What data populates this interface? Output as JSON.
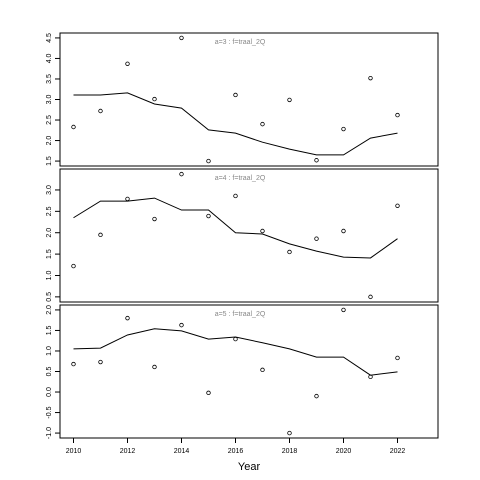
{
  "chart_data": [
    {
      "type": "line",
      "title": "a=3  :  f=traal_2Q",
      "x": [
        2010,
        2011,
        2012,
        2013,
        2014,
        2015,
        2016,
        2017,
        2018,
        2019,
        2020,
        2021,
        2022
      ],
      "series": [
        {
          "color": "#000000",
          "mode": "points",
          "values": [
            2.33,
            2.72,
            3.87,
            3.01,
            4.5,
            1.5,
            3.11,
            2.4,
            2.99,
            1.52,
            2.28,
            3.52,
            2.62
          ]
        },
        {
          "color": "#000000",
          "mode": "line",
          "values": [
            3.11,
            3.11,
            3.16,
            2.89,
            2.79,
            2.26,
            2.18,
            1.96,
            1.79,
            1.65,
            1.65,
            2.06,
            2.18
          ]
        }
      ],
      "xlim": [
        2009.5,
        2023.5
      ],
      "ylim": [
        1.38,
        4.62
      ],
      "yticks": [
        1.5,
        {
          "value": 2,
          "label": "2.0"
        },
        2.5,
        {
          "value": 3,
          "label": "3.0"
        },
        3.5,
        {
          "value": 4,
          "label": "4.0"
        },
        4.5
      ]
    },
    {
      "type": "line",
      "title": "a=4  :  f=traal_2Q",
      "x": [
        2010,
        2011,
        2012,
        2013,
        2014,
        2015,
        2016,
        2017,
        2018,
        2019,
        2020,
        2021,
        2022
      ],
      "series": [
        {
          "color": "#000000",
          "mode": "points",
          "values": [
            1.22,
            1.95,
            2.79,
            2.32,
            3.37,
            2.39,
            2.86,
            2.04,
            1.55,
            1.86,
            2.04,
            0.5,
            2.63
          ]
        },
        {
          "color": "#000000",
          "mode": "line",
          "values": [
            2.35,
            2.74,
            2.74,
            2.81,
            2.53,
            2.53,
            2.0,
            1.97,
            1.74,
            1.57,
            1.43,
            1.41,
            1.86
          ]
        }
      ],
      "xlim": [
        2009.5,
        2023.5
      ],
      "ylim": [
        0.38,
        3.49
      ],
      "yticks": [
        0.5,
        {
          "value": 1,
          "label": "1.0"
        },
        1.5,
        {
          "value": 2,
          "label": "2.0"
        },
        2.5,
        {
          "value": 3,
          "label": "3.0"
        }
      ]
    },
    {
      "type": "line",
      "title": "a=5  :  f=traal_2Q",
      "xlabel": "Year",
      "x": [
        2010,
        2011,
        2012,
        2013,
        2014,
        2015,
        2016,
        2017,
        2018,
        2019,
        2020,
        2021,
        2022
      ],
      "series": [
        {
          "color": "#000000",
          "mode": "points",
          "values": [
            0.68,
            0.73,
            1.8,
            0.61,
            1.63,
            -0.02,
            1.29,
            0.54,
            -1.0,
            -0.1,
            2.0,
            0.37,
            0.83
          ]
        },
        {
          "color": "#000000",
          "mode": "line",
          "values": [
            1.05,
            1.07,
            1.39,
            1.54,
            1.49,
            1.29,
            1.34,
            1.2,
            1.05,
            0.85,
            0.85,
            0.41,
            0.49
          ]
        }
      ],
      "xlim": [
        2009.5,
        2023.5
      ],
      "ylim": [
        -1.12,
        2.12
      ],
      "xticks": [
        2010,
        2012,
        2014,
        2016,
        2018,
        2020,
        2022
      ],
      "yticks": [
        {
          "value": -1,
          "label": "-1.0"
        },
        -0.5,
        {
          "value": 0,
          "label": "0.0"
        },
        0.5,
        {
          "value": 1,
          "label": "1.0"
        },
        1.5,
        {
          "value": 2,
          "label": "2.0"
        }
      ]
    }
  ]
}
